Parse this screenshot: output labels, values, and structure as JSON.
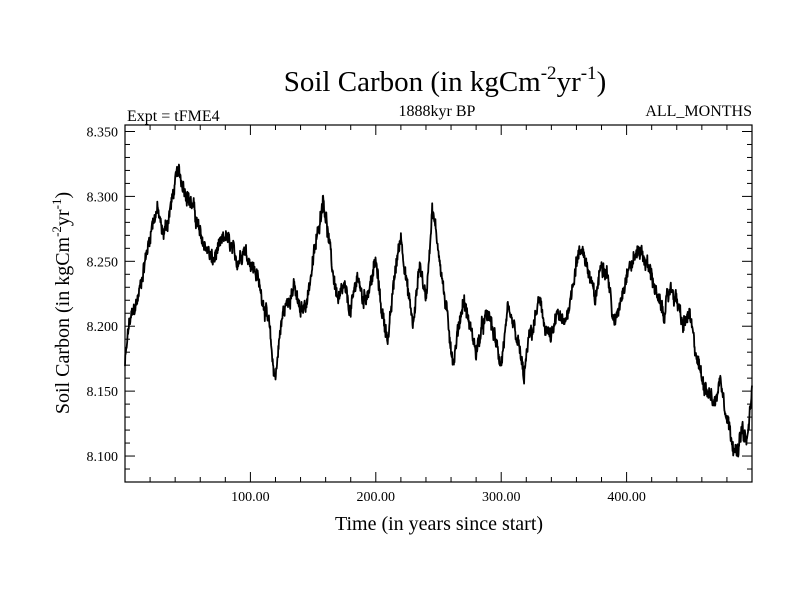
{
  "chart_data": {
    "type": "line",
    "title": "Soil Carbon (in kgCm",
    "title_sup1": "-2",
    "title_mid": "yr",
    "title_sup2": "-1",
    "title_end": ")",
    "subtitle_left": "Expt = tFME4",
    "subtitle_center": "1888kyr BP",
    "subtitle_right": "ALL_MONTHS",
    "xlabel": "Time (in years since start)",
    "ylabel": "Soil Carbon (in kgCm",
    "ylabel_sup1": "-2",
    "ylabel_mid": "yr",
    "ylabel_sup2": "-1",
    "ylabel_end": ")",
    "xlim": [
      0,
      500
    ],
    "ylim": [
      8.08,
      8.355
    ],
    "xticks": [
      100,
      200,
      300,
      400
    ],
    "xtick_labels": [
      "100.00",
      "200.00",
      "300.00",
      "400.00"
    ],
    "yticks": [
      8.1,
      8.15,
      8.2,
      8.25,
      8.3,
      8.35
    ],
    "ytick_labels": [
      "8.100",
      "8.150",
      "8.200",
      "8.250",
      "8.300",
      "8.350"
    ],
    "noise_amplitude": 0.006,
    "series": [
      {
        "name": "Soil Carbon",
        "color": "#000000",
        "x": [
          0,
          3,
          6,
          10,
          14,
          18,
          22,
          26,
          30,
          34,
          38,
          42,
          46,
          50,
          55,
          60,
          65,
          70,
          75,
          80,
          85,
          90,
          95,
          100,
          105,
          110,
          115,
          118,
          120,
          123,
          126,
          130,
          135,
          140,
          145,
          150,
          155,
          158,
          162,
          166,
          170,
          175,
          180,
          185,
          190,
          195,
          200,
          205,
          210,
          215,
          220,
          225,
          230,
          235,
          240,
          245,
          250,
          255,
          258,
          262,
          266,
          270,
          275,
          280,
          285,
          290,
          295,
          300,
          305,
          310,
          315,
          318,
          322,
          326,
          330,
          335,
          340,
          345,
          350,
          355,
          360,
          365,
          370,
          375,
          380,
          385,
          390,
          395,
          400,
          405,
          410,
          415,
          420,
          425,
          430,
          435,
          440,
          445,
          450,
          455,
          460,
          465,
          470,
          475,
          480,
          485,
          488,
          492,
          496,
          500
        ],
        "y": [
          8.17,
          8.2,
          8.21,
          8.22,
          8.24,
          8.26,
          8.28,
          8.29,
          8.27,
          8.28,
          8.3,
          8.32,
          8.31,
          8.3,
          8.29,
          8.27,
          8.26,
          8.25,
          8.26,
          8.27,
          8.26,
          8.25,
          8.26,
          8.25,
          8.24,
          8.22,
          8.2,
          8.17,
          8.16,
          8.19,
          8.21,
          8.22,
          8.23,
          8.21,
          8.22,
          8.25,
          8.28,
          8.3,
          8.27,
          8.24,
          8.22,
          8.23,
          8.21,
          8.24,
          8.22,
          8.23,
          8.25,
          8.21,
          8.19,
          8.24,
          8.27,
          8.23,
          8.2,
          8.25,
          8.22,
          8.29,
          8.26,
          8.22,
          8.2,
          8.17,
          8.2,
          8.22,
          8.2,
          8.18,
          8.2,
          8.21,
          8.19,
          8.17,
          8.21,
          8.2,
          8.18,
          8.16,
          8.19,
          8.2,
          8.22,
          8.2,
          8.19,
          8.21,
          8.2,
          8.22,
          8.25,
          8.26,
          8.24,
          8.22,
          8.25,
          8.24,
          8.2,
          8.22,
          8.24,
          8.25,
          8.26,
          8.25,
          8.24,
          8.22,
          8.21,
          8.23,
          8.22,
          8.2,
          8.21,
          8.18,
          8.16,
          8.15,
          8.14,
          8.16,
          8.13,
          8.11,
          8.1,
          8.12,
          8.11,
          8.15
        ]
      }
    ]
  }
}
